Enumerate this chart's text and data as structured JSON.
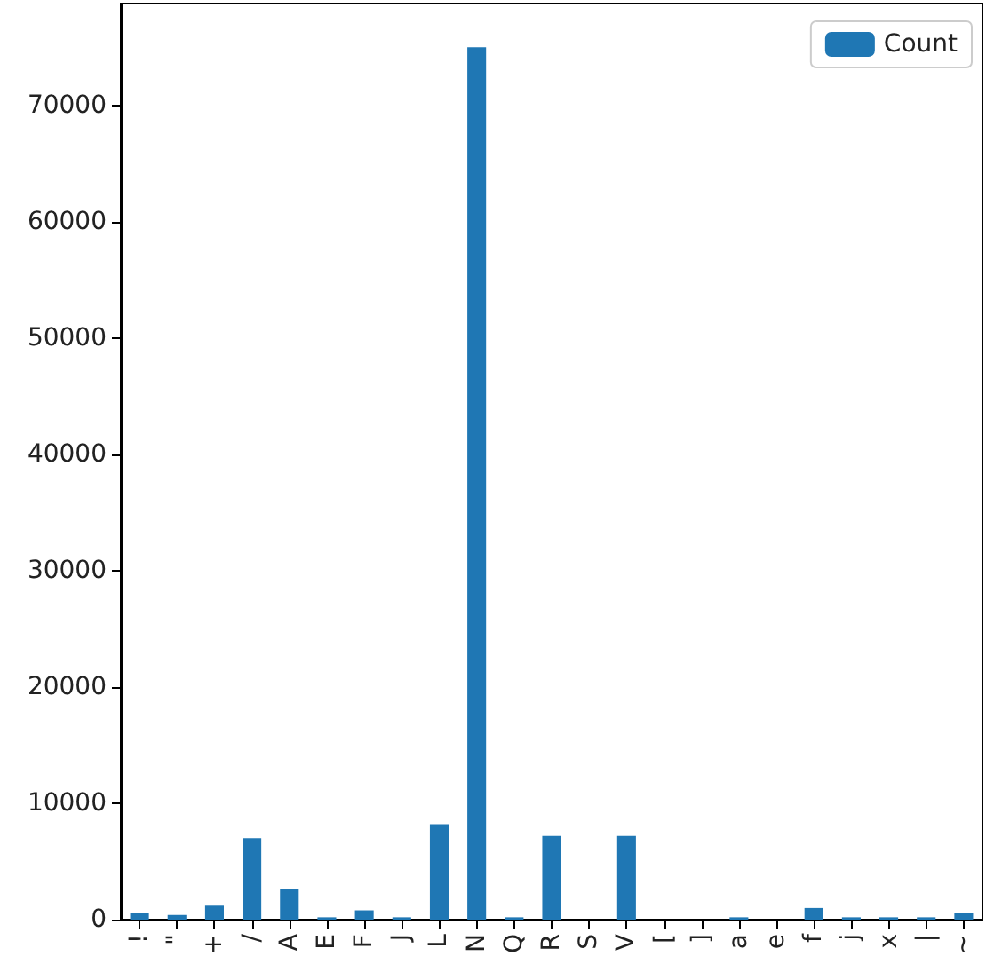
{
  "chart_data": {
    "type": "bar",
    "categories": [
      "!",
      "\"",
      "+",
      "/",
      "A",
      "E",
      "F",
      "J",
      "L",
      "N",
      "Q",
      "R",
      "S",
      "V",
      "[",
      "]",
      "a",
      "e",
      "f",
      "j",
      "x",
      "|",
      "~"
    ],
    "series": [
      {
        "name": "Count",
        "color": "#1f77b4",
        "values": [
          600,
          400,
          1200,
          7000,
          2600,
          200,
          800,
          200,
          8200,
          75000,
          200,
          7200,
          0,
          7200,
          0,
          0,
          200,
          0,
          1000,
          200,
          200,
          200,
          600
        ]
      }
    ],
    "ylim": [
      0,
      78750
    ],
    "yticks": [
      0,
      10000,
      20000,
      30000,
      40000,
      50000,
      60000,
      70000
    ],
    "grid": false,
    "legend": "top right"
  }
}
